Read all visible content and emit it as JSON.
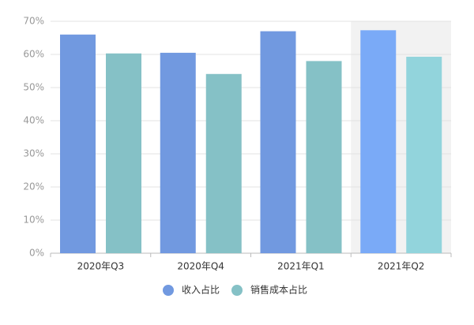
{
  "chart_data": {
    "type": "bar",
    "categories": [
      "2020年Q3",
      "2020年Q4",
      "2021年Q1",
      "2021年Q2"
    ],
    "series": [
      {
        "name": "收入占比",
        "color": "#7199e0",
        "highlight_color": "#7aaaf7",
        "values": [
          66,
          60.5,
          67,
          67.3
        ]
      },
      {
        "name": "销售成本占比",
        "color": "#85c1c6",
        "highlight_color": "#92d4dc",
        "values": [
          60.3,
          54.1,
          58,
          59.3
        ]
      }
    ],
    "highlight_index": 3,
    "ylim": [
      0,
      70
    ],
    "yticks": [
      {
        "value": 0,
        "label": "0%"
      },
      {
        "value": 10,
        "label": "10%"
      },
      {
        "value": 20,
        "label": "20%"
      },
      {
        "value": 30,
        "label": "30%"
      },
      {
        "value": 40,
        "label": "40%"
      },
      {
        "value": 50,
        "label": "50%"
      },
      {
        "value": 60,
        "label": "60%"
      },
      {
        "value": 70,
        "label": "70%"
      }
    ],
    "grid": true,
    "legend": "bottom"
  }
}
